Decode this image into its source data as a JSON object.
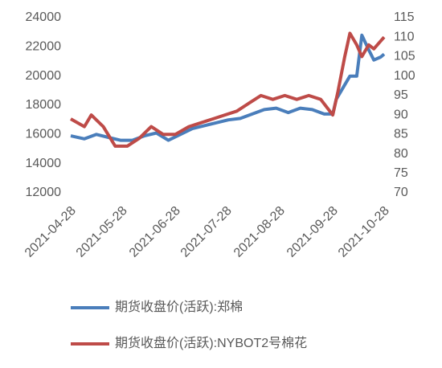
{
  "chart_data": {
    "type": "line",
    "xlim": [
      "2021-04-28",
      "2021-10-28"
    ],
    "xticks": [
      "2021-04-28",
      "2021-05-28",
      "2021-06-28",
      "2021-07-28",
      "2021-08-28",
      "2021-09-28",
      "2021-10-28"
    ],
    "ylim": [
      12000,
      24000
    ],
    "yticks": [
      12000,
      14000,
      16000,
      18000,
      20000,
      22000,
      24000
    ],
    "y2lim": [
      70,
      115
    ],
    "y2ticks": [
      70,
      75,
      80,
      85,
      90,
      95,
      100,
      105,
      110,
      115
    ],
    "grid": false,
    "legend": "bottom",
    "series": [
      {
        "name": "期货收盘价(活跃):郑棉",
        "color": "#4a7ebb",
        "x": [
          "2021-04-28",
          "2021-05-06",
          "2021-05-13",
          "2021-05-20",
          "2021-05-27",
          "2021-06-03",
          "2021-06-10",
          "2021-06-17",
          "2021-06-24",
          "2021-07-01",
          "2021-07-08",
          "2021-07-15",
          "2021-07-22",
          "2021-07-29",
          "2021-08-05",
          "2021-08-12",
          "2021-08-19",
          "2021-08-26",
          "2021-09-02",
          "2021-09-09",
          "2021-09-16",
          "2021-09-23",
          "2021-09-28",
          "2021-09-30",
          "2021-10-08",
          "2021-10-12",
          "2021-10-15",
          "2021-10-19",
          "2021-10-22",
          "2021-10-26",
          "2021-10-28"
        ],
        "values": [
          15900,
          15700,
          16000,
          15800,
          15600,
          15600,
          15900,
          16100,
          15600,
          16000,
          16400,
          16600,
          16800,
          17000,
          17100,
          17400,
          17700,
          17800,
          17500,
          17800,
          17700,
          17400,
          17400,
          18400,
          20000,
          20000,
          22800,
          21800,
          21100,
          21300,
          21500
        ]
      },
      {
        "name": "期货收盘价(活跃):NYBOT2号棉花",
        "color": "#be4b48",
        "axis": "y2",
        "x": [
          "2021-04-28",
          "2021-05-06",
          "2021-05-10",
          "2021-05-17",
          "2021-05-24",
          "2021-05-31",
          "2021-06-07",
          "2021-06-14",
          "2021-06-21",
          "2021-06-28",
          "2021-07-06",
          "2021-07-13",
          "2021-07-20",
          "2021-07-27",
          "2021-08-03",
          "2021-08-10",
          "2021-08-17",
          "2021-08-24",
          "2021-08-31",
          "2021-09-07",
          "2021-09-14",
          "2021-09-21",
          "2021-09-28",
          "2021-10-01",
          "2021-10-05",
          "2021-10-08",
          "2021-10-12",
          "2021-10-15",
          "2021-10-19",
          "2021-10-22",
          "2021-10-26",
          "2021-10-28"
        ],
        "values": [
          89,
          87,
          90,
          87,
          82,
          82,
          84,
          87,
          85,
          85,
          87,
          88,
          89,
          90,
          91,
          93,
          95,
          94,
          95,
          94,
          95,
          94,
          90,
          96,
          105,
          111,
          108,
          105,
          108,
          107,
          109,
          110
        ]
      }
    ]
  }
}
